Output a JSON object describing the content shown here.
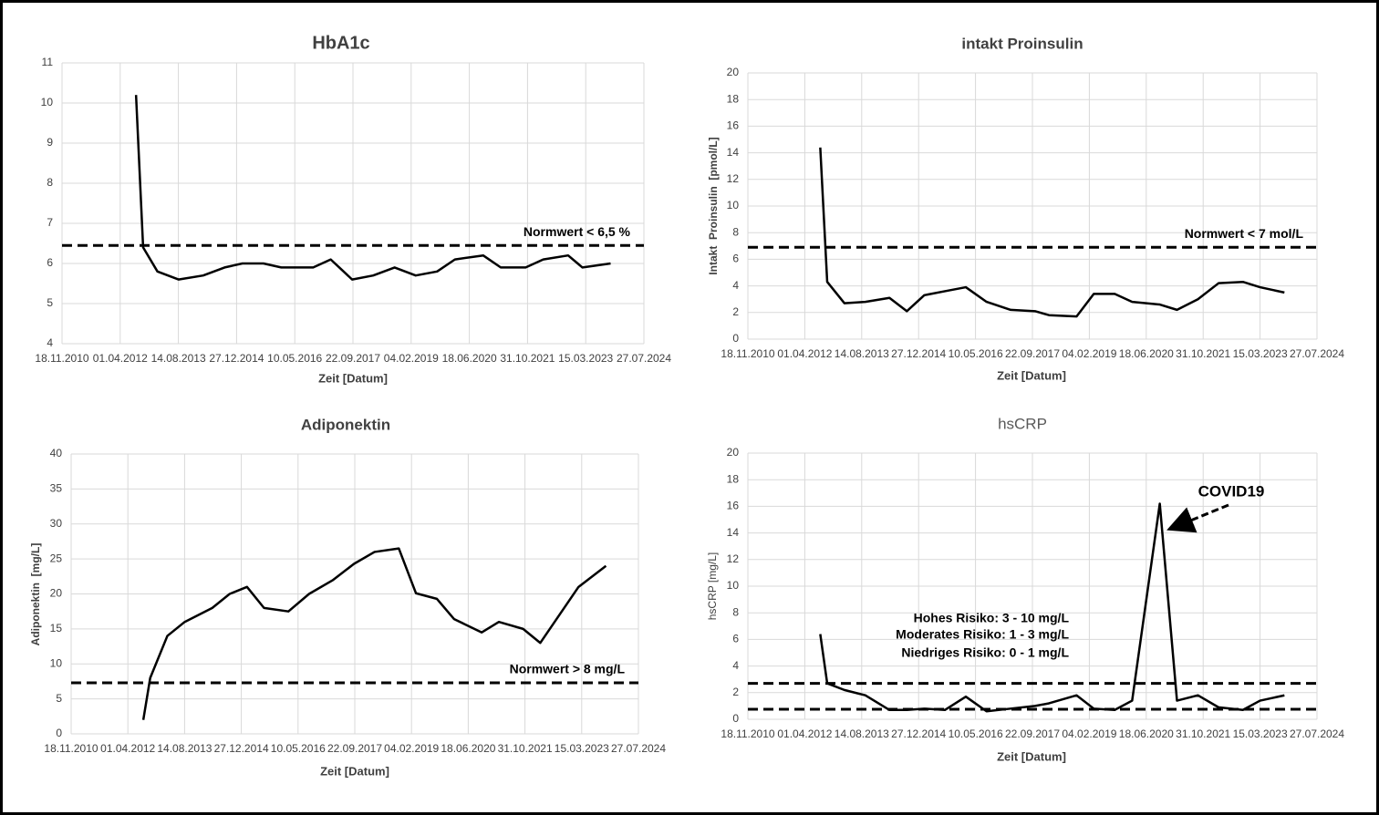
{
  "chart_data": [
    {
      "type": "line",
      "title": "HbA1c",
      "xlabel": "Zeit [Datum]",
      "color": "#000000",
      "grid": true,
      "x": [
        "15.08.2012",
        "15.10.2012",
        "15.02.2013",
        "15.08.2013",
        "15.03.2014",
        "15.09.2014",
        "15.02.2015",
        "15.08.2015",
        "15.01.2016",
        "15.10.2016",
        "15.03.2017",
        "15.09.2017",
        "15.03.2018",
        "15.09.2018",
        "15.03.2019",
        "15.09.2019",
        "15.02.2020",
        "15.10.2020",
        "15.03.2021",
        "15.10.2021",
        "15.03.2022",
        "15.10.2022",
        "15.02.2023",
        "15.10.2023"
      ],
      "values": [
        10.2,
        6.4,
        5.8,
        5.6,
        5.7,
        5.9,
        6.0,
        6.0,
        5.9,
        5.9,
        6.1,
        5.6,
        5.7,
        5.9,
        5.7,
        5.8,
        6.1,
        6.2,
        5.9,
        5.9,
        6.1,
        6.2,
        5.9,
        6.0
      ],
      "xlim": [
        "18.11.2010",
        "27.07.2024"
      ],
      "xticks": [
        "18.11.2010",
        "01.04.2012",
        "14.08.2013",
        "27.12.2014",
        "10.05.2016",
        "22.09.2017",
        "04.02.2019",
        "18.06.2020",
        "31.10.2021",
        "15.03.2023",
        "27.07.2024"
      ],
      "ylim": [
        4,
        11
      ],
      "yticks": [
        4,
        5,
        6,
        7,
        8,
        9,
        10,
        11
      ],
      "ref_lines": [
        {
          "value": 6.45,
          "label": "Normwert < 6,5 %"
        }
      ]
    },
    {
      "type": "line",
      "title": "intakt Proinsulin",
      "xlabel": "Zeit [Datum]",
      "ylabel": "Intakt  Proinsulin  [pmol/L]",
      "color": "#000000",
      "grid": true,
      "x": [
        "15.08.2012",
        "15.10.2012",
        "15.03.2013",
        "15.09.2013",
        "15.04.2014",
        "15.09.2014",
        "15.02.2015",
        "15.08.2015",
        "15.02.2016",
        "15.08.2016",
        "15.03.2017",
        "15.10.2017",
        "15.02.2018",
        "15.10.2018",
        "15.03.2019",
        "15.09.2019",
        "15.02.2020",
        "15.10.2020",
        "15.03.2021",
        "15.09.2021",
        "15.03.2022",
        "15.10.2022",
        "15.03.2023",
        "15.10.2023"
      ],
      "values": [
        14.4,
        4.3,
        2.7,
        2.8,
        3.1,
        2.1,
        3.3,
        3.6,
        3.9,
        2.8,
        2.2,
        2.1,
        1.8,
        1.7,
        3.4,
        3.4,
        2.8,
        2.6,
        2.2,
        3.0,
        4.2,
        4.3,
        3.9,
        3.5
      ],
      "xlim": [
        "18.11.2010",
        "27.07.2024"
      ],
      "xticks": [
        "18.11.2010",
        "01.04.2012",
        "14.08.2013",
        "27.12.2014",
        "10.05.2016",
        "22.09.2017",
        "04.02.2019",
        "18.06.2020",
        "31.10.2021",
        "15.03.2023",
        "27.07.2024"
      ],
      "ylim": [
        0,
        20
      ],
      "yticks": [
        0,
        2,
        4,
        6,
        8,
        10,
        12,
        14,
        16,
        18,
        20
      ],
      "ref_lines": [
        {
          "value": 6.9,
          "label": "Normwert < 7 mol/L"
        }
      ]
    },
    {
      "type": "line",
      "title": "Adiponektin",
      "xlabel": "Zeit [Datum]",
      "ylabel": "Adiponektin  [mg/L]",
      "color": "#000000",
      "grid": true,
      "x": [
        "15.08.2012",
        "15.10.2012",
        "15.03.2013",
        "15.08.2013",
        "15.04.2014",
        "15.09.2014",
        "15.02.2015",
        "15.07.2015",
        "15.02.2016",
        "15.08.2016",
        "15.03.2017",
        "15.09.2017",
        "15.03.2018",
        "15.10.2018",
        "15.03.2019",
        "15.09.2019",
        "15.02.2020",
        "15.10.2020",
        "15.03.2021",
        "15.10.2021",
        "15.03.2022",
        "15.02.2023",
        "15.10.2023"
      ],
      "values": [
        2.0,
        8,
        14,
        16,
        18,
        20,
        21,
        18,
        17.5,
        20,
        22,
        24.3,
        26,
        26.5,
        20.1,
        19.3,
        16.4,
        14.5,
        16,
        15,
        13,
        21,
        24
      ],
      "xlim": [
        "18.11.2010",
        "27.07.2024"
      ],
      "xticks": [
        "18.11.2010",
        "01.04.2012",
        "14.08.2013",
        "27.12.2014",
        "10.05.2016",
        "22.09.2017",
        "04.02.2019",
        "18.06.2020",
        "31.10.2021",
        "15.03.2023",
        "27.07.2024"
      ],
      "ylim": [
        0,
        40
      ],
      "yticks": [
        0,
        5,
        10,
        15,
        20,
        25,
        30,
        35,
        40
      ],
      "ref_lines": [
        {
          "value": 7.3,
          "label": "Normwert > 8 mg/L"
        }
      ]
    },
    {
      "type": "line",
      "title": "hsCRP",
      "xlabel": "Zeit [Datum]",
      "ylabel": "hsCRP [mg/L]",
      "color": "#000000",
      "grid": true,
      "x": [
        "15.08.2012",
        "15.10.2012",
        "15.03.2013",
        "15.09.2013",
        "15.04.2014",
        "15.09.2014",
        "15.02.2015",
        "15.08.2015",
        "15.02.2016",
        "15.08.2016",
        "15.03.2017",
        "15.10.2017",
        "15.02.2018",
        "15.10.2018",
        "15.03.2019",
        "15.09.2019",
        "15.02.2020",
        "15.10.2020",
        "15.03.2021",
        "15.09.2021",
        "15.03.2022",
        "15.10.2022",
        "15.03.2023",
        "15.10.2023"
      ],
      "values": [
        6.4,
        2.7,
        2.2,
        1.8,
        0.7,
        0.7,
        0.8,
        0.7,
        1.7,
        0.6,
        0.8,
        1.0,
        1.2,
        1.8,
        0.8,
        0.7,
        1.4,
        16.2,
        1.4,
        1.8,
        0.9,
        0.7,
        1.4,
        1.8
      ],
      "xlim": [
        "18.11.2010",
        "27.07.2024"
      ],
      "xticks": [
        "18.11.2010",
        "01.04.2012",
        "14.08.2013",
        "27.12.2014",
        "10.05.2016",
        "22.09.2017",
        "04.02.2019",
        "18.06.2020",
        "31.10.2021",
        "15.03.2023",
        "27.07.2024"
      ],
      "ylim": [
        0,
        20
      ],
      "yticks": [
        0,
        2,
        4,
        6,
        8,
        10,
        12,
        14,
        16,
        18,
        20
      ],
      "ref_lines": [
        {
          "value": 2.7
        },
        {
          "value": 0.75
        }
      ],
      "annotations": [
        "Hohes Risiko: 3 - 10 mg/L",
        "Moderates Risiko: 1 - 3 mg/L",
        "Niedriges Risiko: 0 - 1 mg/L",
        "COVID19"
      ]
    }
  ]
}
